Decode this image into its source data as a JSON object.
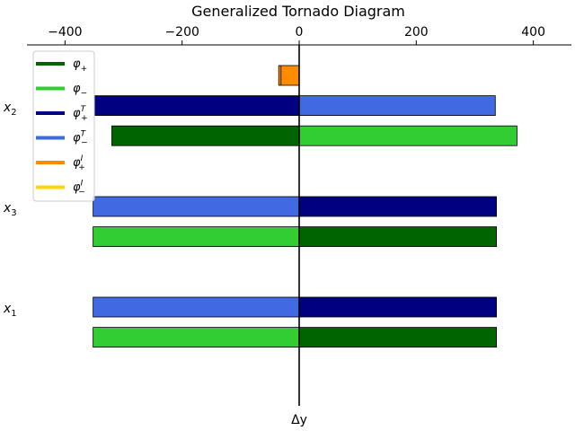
{
  "chart_data": {
    "type": "bar",
    "orientation": "horizontal",
    "title": "Generalized Tornado Diagram",
    "xlabel": "Δy",
    "ylabel": "",
    "xlim": [
      -465,
      465
    ],
    "xticks": [
      -400,
      -200,
      0,
      200,
      400
    ],
    "xtick_labels": [
      "−400",
      "−200",
      "0",
      "200",
      "400"
    ],
    "x_axis_position": "top",
    "grid": false,
    "legend_position": "top-left",
    "categories": [
      {
        "label_base": "x",
        "label_sub": "2"
      },
      {
        "label_base": "x",
        "label_sub": "3"
      },
      {
        "label_base": "x",
        "label_sub": "1"
      }
    ],
    "series": [
      {
        "key": "phi_plus",
        "base": "φ",
        "sub": "+",
        "sup": "",
        "color": "#006400"
      },
      {
        "key": "phi_minus",
        "base": "φ",
        "sub": "−",
        "sup": "",
        "color": "#32cd32"
      },
      {
        "key": "phi_T_plus",
        "base": "φ",
        "sub": "+",
        "sup": "T",
        "color": "#000080"
      },
      {
        "key": "phi_T_minus",
        "base": "φ",
        "sub": "−",
        "sup": "T",
        "color": "#4169e1"
      },
      {
        "key": "phi_I_plus",
        "base": "φ",
        "sub": "+",
        "sup": "I",
        "color": "#ff8c00"
      },
      {
        "key": "phi_I_minus",
        "base": "φ",
        "sub": "−",
        "sup": "I",
        "color": "#ffd700"
      }
    ],
    "bars": [
      {
        "category": "x2",
        "row": 0,
        "segments": [
          {
            "series": "phi_I_plus",
            "from": -35,
            "to": 0
          },
          {
            "series": "phi_I_minus",
            "from": 0,
            "to": 0
          }
        ]
      },
      {
        "category": "x2",
        "row": 1,
        "segments": [
          {
            "series": "phi_T_plus",
            "from": -350,
            "to": 0
          },
          {
            "series": "phi_T_minus",
            "from": 0,
            "to": 335
          }
        ]
      },
      {
        "category": "x2",
        "row": 2,
        "segments": [
          {
            "series": "phi_plus",
            "from": -320,
            "to": 0
          },
          {
            "series": "phi_minus",
            "from": 0,
            "to": 372
          }
        ]
      },
      {
        "category": "x3",
        "row": 0,
        "segments": [
          {
            "series": "phi_T_minus",
            "from": -352,
            "to": 0
          },
          {
            "series": "phi_T_plus",
            "from": 0,
            "to": 337
          }
        ]
      },
      {
        "category": "x3",
        "row": 1,
        "segments": [
          {
            "series": "phi_minus",
            "from": -352,
            "to": 0
          },
          {
            "series": "phi_plus",
            "from": 0,
            "to": 337
          }
        ]
      },
      {
        "category": "x1",
        "row": 0,
        "segments": [
          {
            "series": "phi_T_minus",
            "from": -352,
            "to": 0
          },
          {
            "series": "phi_T_plus",
            "from": 0,
            "to": 337
          }
        ]
      },
      {
        "category": "x1",
        "row": 1,
        "segments": [
          {
            "series": "phi_minus",
            "from": -352,
            "to": 0
          },
          {
            "series": "phi_plus",
            "from": 0,
            "to": 337
          }
        ]
      }
    ]
  }
}
